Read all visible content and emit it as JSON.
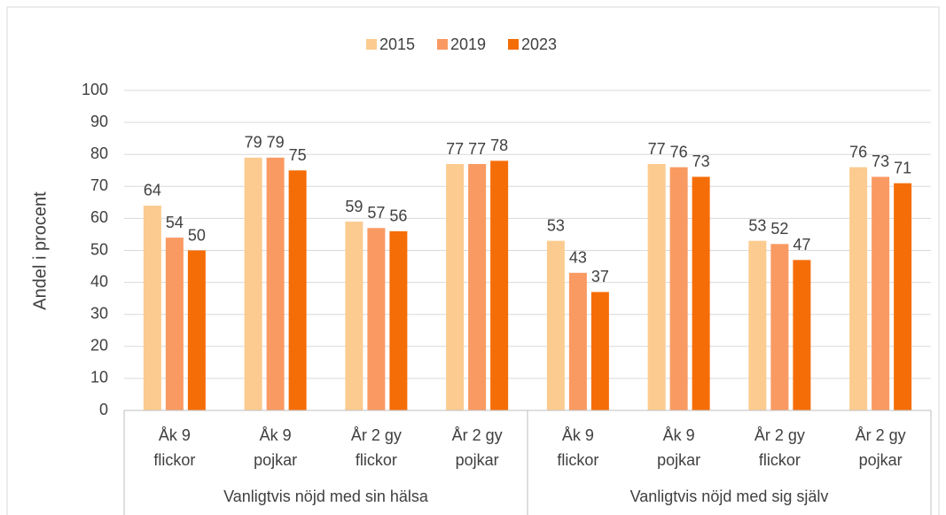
{
  "chart_data": {
    "type": "bar",
    "y_axis_label": "Andel i procent",
    "groups": [
      {
        "name": "Vanligtvis nöjd med sin hälsa",
        "categories": [
          [
            "Åk 9",
            "flickor"
          ],
          [
            "Åk 9",
            "pojkar"
          ],
          [
            "År 2 gy",
            "flickor"
          ],
          [
            "År 2 gy",
            "pojkar"
          ]
        ]
      },
      {
        "name": "Vanligtvis nöjd med sig själv",
        "categories": [
          [
            "Åk 9",
            "flickor"
          ],
          [
            "Åk 9",
            "pojkar"
          ],
          [
            "År 2 gy",
            "flickor"
          ],
          [
            "År 2 gy",
            "pojkar"
          ]
        ]
      }
    ],
    "series": [
      {
        "name": "2015",
        "color": "#fccb8f",
        "values": [
          64,
          79,
          59,
          77,
          53,
          77,
          53,
          76
        ]
      },
      {
        "name": "2019",
        "color": "#f99a62",
        "values": [
          54,
          79,
          57,
          77,
          43,
          76,
          52,
          73
        ]
      },
      {
        "name": "2023",
        "color": "#f56d07",
        "values": [
          50,
          75,
          56,
          78,
          37,
          73,
          47,
          71
        ]
      }
    ],
    "ylim": [
      0,
      100
    ],
    "yticks": [
      0,
      10,
      20,
      30,
      40,
      50,
      60,
      70,
      80,
      90,
      100
    ],
    "grid": true,
    "legend": "top"
  }
}
